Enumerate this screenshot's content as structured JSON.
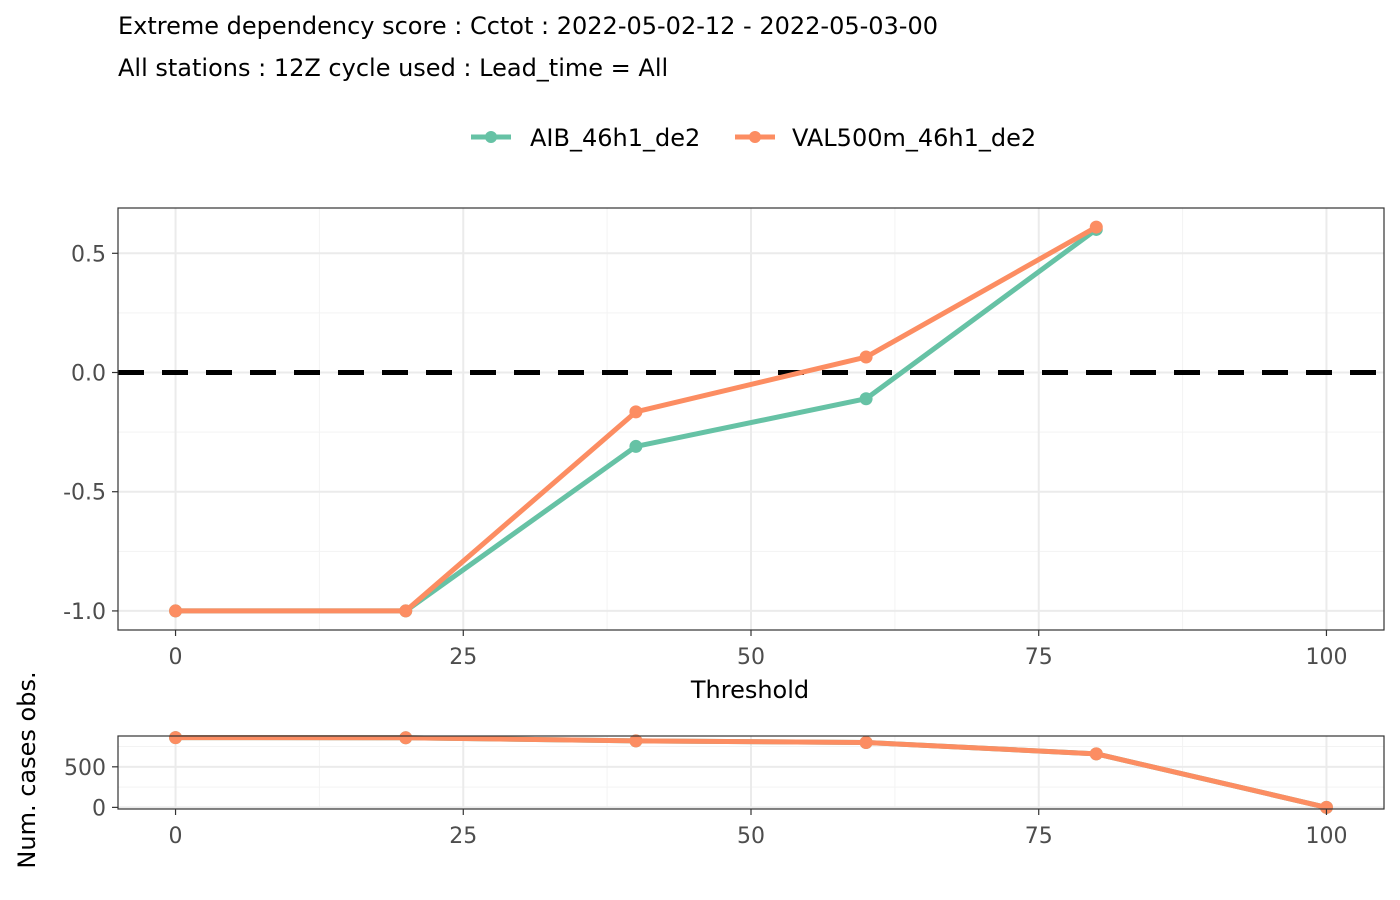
{
  "header": {
    "title": "Extreme dependency score : Cctot : 2022-05-02-12 - 2022-05-03-00",
    "subtitle": "All stations : 12Z cycle used : Lead_time = All"
  },
  "legend": {
    "position": "top",
    "items": [
      {
        "name": "AIB_46h1_de2",
        "color": "#66c2a5"
      },
      {
        "name": "VAL500m_46h1_de2",
        "color": "#fc8d62"
      }
    ]
  },
  "chart_data": [
    {
      "type": "line",
      "xlabel": "Threshold",
      "ylabel": "",
      "xlim": [
        -5,
        105
      ],
      "ylim": [
        -1.08,
        0.69
      ],
      "xticks": [
        0,
        25,
        50,
        75,
        100
      ],
      "xtick_labels": [
        "0",
        "25",
        "50",
        "75",
        "100"
      ],
      "yticks": [
        -1.0,
        -0.5,
        0.0,
        0.5
      ],
      "ytick_labels": [
        "-1.0",
        "-0.5",
        "0.0",
        "0.5"
      ],
      "grid": true,
      "reference_line": {
        "y": 0,
        "style": "dashed",
        "color": "#000000"
      },
      "series": [
        {
          "name": "AIB_46h1_de2",
          "color": "#66c2a5",
          "x": [
            0,
            20,
            40,
            60,
            80
          ],
          "y": [
            -1.0,
            -1.0,
            -0.31,
            -0.11,
            0.6
          ]
        },
        {
          "name": "VAL500m_46h1_de2",
          "color": "#fc8d62",
          "x": [
            0,
            20,
            40,
            60,
            80
          ],
          "y": [
            -1.0,
            -1.0,
            -0.165,
            0.065,
            0.61
          ]
        }
      ]
    },
    {
      "type": "line",
      "xlabel": "",
      "ylabel": "Num. cases obs.",
      "xlim": [
        -5,
        105
      ],
      "ylim": [
        -20,
        880
      ],
      "xticks": [
        0,
        25,
        50,
        75,
        100
      ],
      "xtick_labels": [
        "0",
        "25",
        "50",
        "75",
        "100"
      ],
      "yticks": [
        0,
        500
      ],
      "ytick_labels": [
        "0",
        "500"
      ],
      "grid": true,
      "series": [
        {
          "name": "AIB_46h1_de2",
          "color": "#66c2a5",
          "x": [
            0,
            20,
            40,
            60,
            80,
            100
          ],
          "y": [
            860,
            858,
            820,
            800,
            660,
            0
          ]
        },
        {
          "name": "VAL500m_46h1_de2",
          "color": "#fc8d62",
          "x": [
            0,
            20,
            40,
            60,
            80,
            100
          ],
          "y": [
            860,
            858,
            820,
            800,
            660,
            0
          ]
        }
      ]
    }
  ]
}
